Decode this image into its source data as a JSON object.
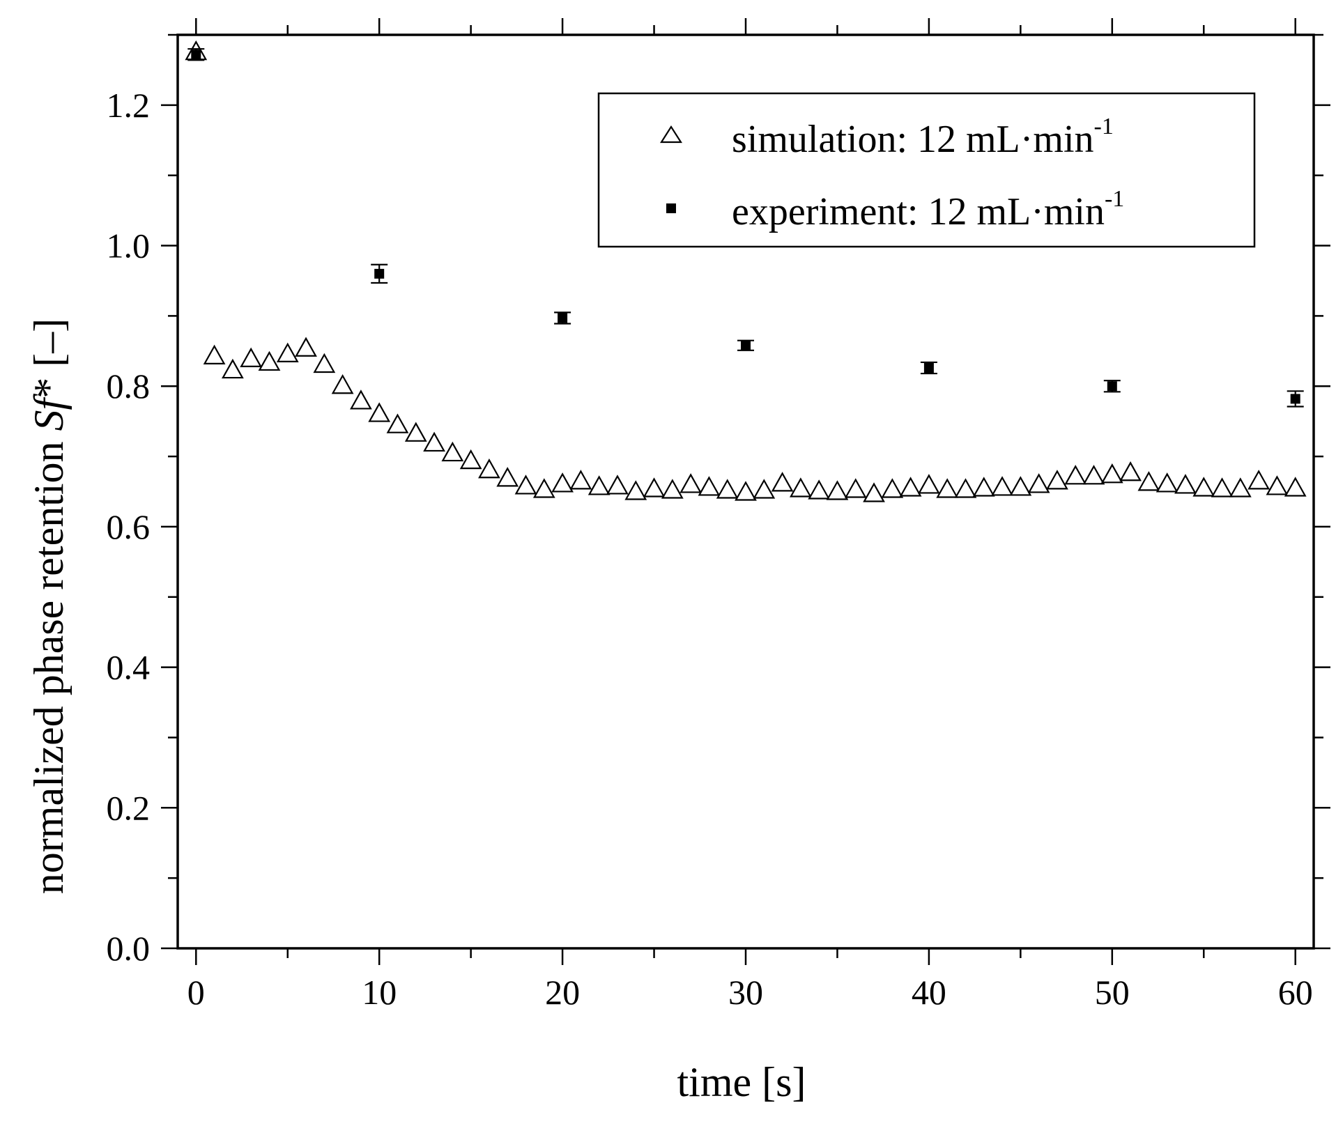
{
  "chart_data": {
    "type": "scatter",
    "title": "",
    "xlabel": "time [s]",
    "ylabel": {
      "prefix": "normalized phase retention ",
      "symbol": "Sf",
      "suffix": "* [–]"
    },
    "xlim": [
      -1,
      61
    ],
    "ylim": [
      0,
      1.3
    ],
    "xticks": [
      0,
      10,
      20,
      30,
      40,
      50,
      60
    ],
    "xtick_labels": [
      "0",
      "10",
      "20",
      "30",
      "40",
      "50",
      "60"
    ],
    "yticks": [
      0,
      0.2,
      0.4,
      0.6,
      0.8,
      1.0,
      1.2
    ],
    "ytick_labels": [
      "0.0",
      "0.2",
      "0.4",
      "0.6",
      "0.8",
      "1.0",
      "1.2"
    ],
    "grid": false,
    "legend_position": "top-right",
    "series": [
      {
        "name": "simulation",
        "label": "simulation: 12 mL·min",
        "label_sup": "-1",
        "marker": "open-triangle",
        "x": [
          0,
          1,
          2,
          3,
          4,
          5,
          6,
          7,
          8,
          9,
          10,
          11,
          12,
          13,
          14,
          15,
          16,
          17,
          18,
          19,
          20,
          21,
          22,
          23,
          24,
          25,
          26,
          27,
          28,
          29,
          30,
          31,
          32,
          33,
          34,
          35,
          36,
          37,
          38,
          39,
          40,
          41,
          42,
          43,
          44,
          45,
          46,
          47,
          48,
          49,
          50,
          51,
          52,
          53,
          54,
          55,
          56,
          57,
          58,
          59,
          60
        ],
        "y": [
          1.275,
          0.842,
          0.822,
          0.838,
          0.833,
          0.845,
          0.853,
          0.83,
          0.8,
          0.778,
          0.76,
          0.744,
          0.732,
          0.718,
          0.704,
          0.693,
          0.68,
          0.668,
          0.657,
          0.652,
          0.66,
          0.664,
          0.656,
          0.657,
          0.649,
          0.653,
          0.651,
          0.659,
          0.655,
          0.651,
          0.648,
          0.651,
          0.661,
          0.653,
          0.65,
          0.649,
          0.652,
          0.646,
          0.652,
          0.654,
          0.658,
          0.652,
          0.652,
          0.654,
          0.655,
          0.655,
          0.659,
          0.664,
          0.671,
          0.671,
          0.673,
          0.676,
          0.662,
          0.66,
          0.658,
          0.654,
          0.653,
          0.653,
          0.664,
          0.656,
          0.654
        ]
      },
      {
        "name": "experiment",
        "label": "experiment: 12 mL·min",
        "label_sup": "-1",
        "marker": "filled-square",
        "x": [
          0,
          10,
          20,
          30,
          40,
          50,
          60
        ],
        "y": [
          1.272,
          0.96,
          0.897,
          0.858,
          0.826,
          0.8,
          0.782
        ],
        "err": [
          0.008,
          0.013,
          0.008,
          0.007,
          0.008,
          0.008,
          0.011
        ]
      }
    ]
  }
}
